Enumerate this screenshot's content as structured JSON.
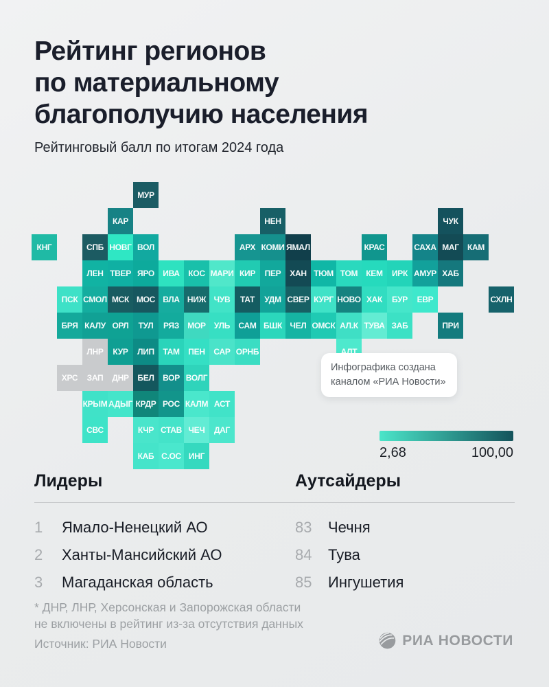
{
  "header": {
    "title_lines": [
      "Рейтинг регионов",
      "по материальному",
      "благополучию населения"
    ],
    "subtitle": "Рейтинговый балл по итогам 2024 года"
  },
  "tooltip": {
    "lines": [
      "Инфографика создана",
      "каналом «РИА Новости»"
    ]
  },
  "legend": {
    "min_label": "2,68",
    "max_label": "100,00",
    "color_low": "#4be5c9",
    "color_high": "#14535b",
    "excluded_color": "#c9cbcd"
  },
  "lists": {
    "leaders": {
      "title": "Лидеры",
      "items": [
        {
          "rank": "1",
          "name": "Ямало-Ненецкий АО"
        },
        {
          "rank": "2",
          "name": "Ханты-Мансийский АО"
        },
        {
          "rank": "3",
          "name": "Магаданская область"
        }
      ]
    },
    "outsiders": {
      "title": "Аутсайдеры",
      "items": [
        {
          "rank": "83",
          "name": "Чечня"
        },
        {
          "rank": "84",
          "name": "Тува"
        },
        {
          "rank": "85",
          "name": "Ингушетия"
        }
      ]
    }
  },
  "footer": {
    "footnote_lines": [
      "* ДНР, ЛНР, Херсонская и Запорожская области",
      "не включены в рейтинг из-за отсутствия данных"
    ],
    "source": "Источник: РИА Новости",
    "logo_text": "РИА НОВОСТИ"
  },
  "chart_data": {
    "type": "heatmap",
    "title": "Рейтинг регионов по материальному благополучию населения",
    "subtitle": "Рейтинговый балл по итогам 2024 года",
    "legend_position": "bottom-right",
    "scale": {
      "min": 2.68,
      "max": 100.0,
      "min_label": "2,68",
      "max_label": "100,00",
      "encoding": "цвет плитки = рейтинговый балл (светлый — низкий, тёмный — высокий); серый — нет данных"
    },
    "tiles": [
      {
        "label": "МУР",
        "col": 4,
        "row": 0,
        "color": "#1b5c64"
      },
      {
        "label": "КАР",
        "col": 3,
        "row": 1,
        "color": "#178285"
      },
      {
        "label": "НЕН",
        "col": 9,
        "row": 1,
        "color": "#175f66"
      },
      {
        "label": "ЧУК",
        "col": 16,
        "row": 1,
        "color": "#14525d"
      },
      {
        "label": "КНГ",
        "col": 0,
        "row": 2,
        "color": "#1fbaa5"
      },
      {
        "label": "СПБ",
        "col": 2,
        "row": 2,
        "color": "#1c5b62"
      },
      {
        "label": "НОВГ",
        "col": 3,
        "row": 2,
        "color": "#2fe7c4"
      },
      {
        "label": "ВОЛ",
        "col": 4,
        "row": 2,
        "color": "#12a9a0"
      },
      {
        "label": "АРХ",
        "col": 8,
        "row": 2,
        "color": "#169591"
      },
      {
        "label": "КОМИ",
        "col": 9,
        "row": 2,
        "color": "#15908d"
      },
      {
        "label": "ЯМАЛ",
        "col": 10,
        "row": 2,
        "color": "#113f4b"
      },
      {
        "label": "КРАС",
        "col": 13,
        "row": 2,
        "color": "#10968e"
      },
      {
        "label": "САХА",
        "col": 15,
        "row": 2,
        "color": "#148489"
      },
      {
        "label": "МАГ",
        "col": 16,
        "row": 2,
        "color": "#134b55"
      },
      {
        "label": "КАМ",
        "col": 17,
        "row": 2,
        "color": "#166d75"
      },
      {
        "label": "ЛЕН",
        "col": 2,
        "row": 3,
        "color": "#11b3a3"
      },
      {
        "label": "ТВЕР",
        "col": 3,
        "row": 3,
        "color": "#10b0a3"
      },
      {
        "label": "ЯРО",
        "col": 4,
        "row": 3,
        "color": "#0daa9c"
      },
      {
        "label": "ИВА",
        "col": 5,
        "row": 3,
        "color": "#2ee2c0"
      },
      {
        "label": "КОС",
        "col": 6,
        "row": 3,
        "color": "#19c0aa"
      },
      {
        "label": "МАРИ",
        "col": 7,
        "row": 3,
        "color": "#50e7ca"
      },
      {
        "label": "КИР",
        "col": 8,
        "row": 3,
        "color": "#21cbb2"
      },
      {
        "label": "ПЕР",
        "col": 9,
        "row": 3,
        "color": "#12a89c"
      },
      {
        "label": "ХАН",
        "col": 10,
        "row": 3,
        "color": "#134a54"
      },
      {
        "label": "ТЮМ",
        "col": 11,
        "row": 3,
        "color": "#10b7a6"
      },
      {
        "label": "ТОМ",
        "col": 12,
        "row": 3,
        "color": "#2ad9be"
      },
      {
        "label": "КЕМ",
        "col": 13,
        "row": 3,
        "color": "#26dabd"
      },
      {
        "label": "ИРК",
        "col": 14,
        "row": 3,
        "color": "#23d4b9"
      },
      {
        "label": "АМУР",
        "col": 15,
        "row": 3,
        "color": "#12a19b"
      },
      {
        "label": "ХАБ",
        "col": 16,
        "row": 3,
        "color": "#15787d"
      },
      {
        "label": "ПСК",
        "col": 1,
        "row": 4,
        "color": "#3ee1c7"
      },
      {
        "label": "СМОЛ",
        "col": 2,
        "row": 4,
        "color": "#14ad9f"
      },
      {
        "label": "МСК",
        "col": 3,
        "row": 4,
        "color": "#195c61"
      },
      {
        "label": "МОС",
        "col": 4,
        "row": 4,
        "color": "#17575f"
      },
      {
        "label": "ВЛА",
        "col": 5,
        "row": 4,
        "color": "#16ac9f"
      },
      {
        "label": "НИЖ",
        "col": 6,
        "row": 4,
        "color": "#176b6c"
      },
      {
        "label": "ЧУВ",
        "col": 7,
        "row": 4,
        "color": "#41e3c7"
      },
      {
        "label": "ТАТ",
        "col": 8,
        "row": 4,
        "color": "#145c61"
      },
      {
        "label": "УДМ",
        "col": 9,
        "row": 4,
        "color": "#12a399"
      },
      {
        "label": "СВЕР",
        "col": 10,
        "row": 4,
        "color": "#176064"
      },
      {
        "label": "КУРГ",
        "col": 11,
        "row": 4,
        "color": "#3fe2c7"
      },
      {
        "label": "НОВО",
        "col": 12,
        "row": 4,
        "color": "#158380"
      },
      {
        "label": "ХАК",
        "col": 13,
        "row": 4,
        "color": "#31ddc1"
      },
      {
        "label": "БУР",
        "col": 14,
        "row": 4,
        "color": "#45e6ca"
      },
      {
        "label": "ЕВР",
        "col": 15,
        "row": 4,
        "color": "#3ee8cc"
      },
      {
        "label": "СХЛН",
        "col": 18,
        "row": 4,
        "color": "#16626b"
      },
      {
        "label": "БРЯ",
        "col": 1,
        "row": 5,
        "color": "#14a99b"
      },
      {
        "label": "КАЛУ",
        "col": 2,
        "row": 5,
        "color": "#11a195"
      },
      {
        "label": "ОРЛ",
        "col": 3,
        "row": 5,
        "color": "#0fa294"
      },
      {
        "label": "ТУЛ",
        "col": 4,
        "row": 5,
        "color": "#0f9991"
      },
      {
        "label": "РЯЗ",
        "col": 5,
        "row": 5,
        "color": "#13ab9d"
      },
      {
        "label": "МОР",
        "col": 6,
        "row": 5,
        "color": "#3fd9c0"
      },
      {
        "label": "УЛЬ",
        "col": 7,
        "row": 5,
        "color": "#37dfc3"
      },
      {
        "label": "САМ",
        "col": 8,
        "row": 5,
        "color": "#0f9f97"
      },
      {
        "label": "БШК",
        "col": 9,
        "row": 5,
        "color": "#2bd7bc"
      },
      {
        "label": "ЧЕЛ",
        "col": 10,
        "row": 5,
        "color": "#16b4a3"
      },
      {
        "label": "ОМСК",
        "col": 11,
        "row": 5,
        "color": "#1fcab3"
      },
      {
        "label": "АЛ.К",
        "col": 12,
        "row": 5,
        "color": "#3fdfc5"
      },
      {
        "label": "ТУВА",
        "col": 13,
        "row": 5,
        "color": "#63ecd3"
      },
      {
        "label": "ЗАБ",
        "col": 14,
        "row": 5,
        "color": "#3ce1c5"
      },
      {
        "label": "ПРИ",
        "col": 16,
        "row": 5,
        "color": "#137b7e"
      },
      {
        "label": "ЛНР",
        "col": 2,
        "row": 6,
        "color": "#c9cbcd"
      },
      {
        "label": "КУР",
        "col": 3,
        "row": 6,
        "color": "#0f9f93"
      },
      {
        "label": "ЛИП",
        "col": 4,
        "row": 6,
        "color": "#0d8b85"
      },
      {
        "label": "ТАМ",
        "col": 5,
        "row": 6,
        "color": "#2ad4ba"
      },
      {
        "label": "ПЕН",
        "col": 6,
        "row": 6,
        "color": "#35dfc4"
      },
      {
        "label": "САР",
        "col": 7,
        "row": 6,
        "color": "#4ae3c9"
      },
      {
        "label": "ОРНБ",
        "col": 8,
        "row": 6,
        "color": "#3bddc3"
      },
      {
        "label": "АЛТ",
        "col": 12,
        "row": 6,
        "color": "#4ee9cd"
      },
      {
        "label": "ХРС",
        "col": 1,
        "row": 7,
        "color": "#c9cbcd"
      },
      {
        "label": "ЗАП",
        "col": 2,
        "row": 7,
        "color": "#c9cbcd"
      },
      {
        "label": "ДНР",
        "col": 3,
        "row": 7,
        "color": "#c9cbcd"
      },
      {
        "label": "БЕЛ",
        "col": 4,
        "row": 7,
        "color": "#14575d"
      },
      {
        "label": "ВОР",
        "col": 5,
        "row": 7,
        "color": "#138f8b"
      },
      {
        "label": "ВОЛГ",
        "col": 6,
        "row": 7,
        "color": "#2fd4bb"
      },
      {
        "label": "КРЫМ",
        "col": 2,
        "row": 8,
        "color": "#40e2c8"
      },
      {
        "label": "АДЫГ",
        "col": 3,
        "row": 8,
        "color": "#44e5ca"
      },
      {
        "label": "КРДР",
        "col": 4,
        "row": 8,
        "color": "#10867a"
      },
      {
        "label": "РОС",
        "col": 5,
        "row": 8,
        "color": "#12958b"
      },
      {
        "label": "КАЛМ",
        "col": 6,
        "row": 8,
        "color": "#4ae7cc"
      },
      {
        "label": "АСТ",
        "col": 7,
        "row": 8,
        "color": "#41e3c8"
      },
      {
        "label": "СВС",
        "col": 2,
        "row": 9,
        "color": "#3ee3c8"
      },
      {
        "label": "КЧР",
        "col": 4,
        "row": 9,
        "color": "#49e5cb"
      },
      {
        "label": "СТАВ",
        "col": 5,
        "row": 9,
        "color": "#44e3c9"
      },
      {
        "label": "ЧЕЧ",
        "col": 6,
        "row": 9,
        "color": "#62ecd4"
      },
      {
        "label": "ДАГ",
        "col": 7,
        "row": 9,
        "color": "#4ce6cc"
      },
      {
        "label": "КАБ",
        "col": 4,
        "row": 10,
        "color": "#45e4ca"
      },
      {
        "label": "С.ОС",
        "col": 5,
        "row": 10,
        "color": "#4ae7cd"
      },
      {
        "label": "ИНГ",
        "col": 6,
        "row": 10,
        "color": "#35d9bf"
      }
    ]
  }
}
